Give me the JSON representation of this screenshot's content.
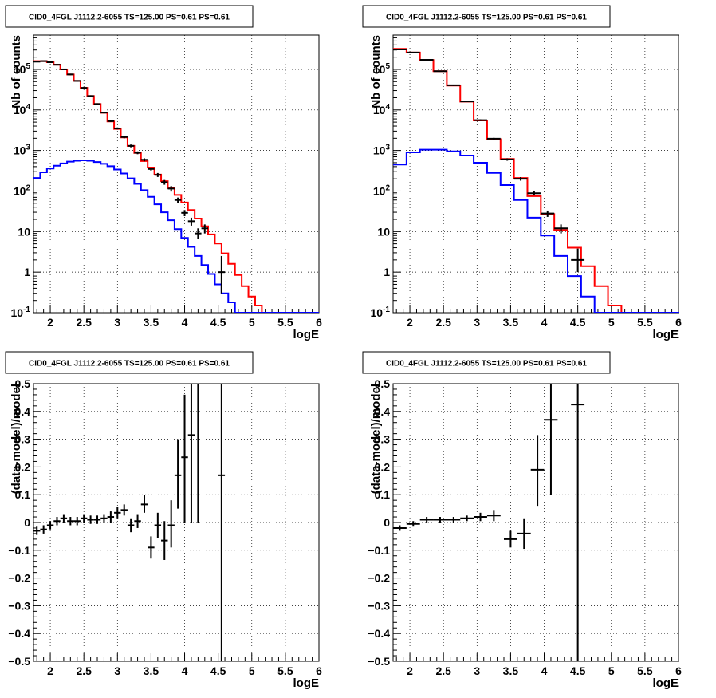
{
  "chart_data": [
    {
      "type": "line",
      "title": "CID0_4FGL J1112.2-6055 TS=125.00 PS=0.61 PS=0.61",
      "xlabel": "logE",
      "ylabel": "Nb of counts",
      "yscale": "log",
      "xlim": [
        1.75,
        6.0
      ],
      "ylim": [
        0.1,
        700000
      ],
      "grid": true,
      "xticks": [
        "2",
        "2.5",
        "3",
        "3.5",
        "4",
        "4.5",
        "5",
        "5.5",
        "6"
      ],
      "yticks": [
        "10^-1",
        "1",
        "10",
        "10^2",
        "10^3",
        "10^4",
        "10^5"
      ],
      "bin_edges": [
        1.75,
        1.85,
        1.95,
        2.05,
        2.15,
        2.25,
        2.35,
        2.45,
        2.55,
        2.65,
        2.75,
        2.85,
        2.95,
        3.05,
        3.15,
        3.25,
        3.35,
        3.45,
        3.55,
        3.65,
        3.75,
        3.85,
        3.95,
        4.05,
        4.15,
        4.25,
        4.35,
        4.45,
        4.55,
        4.65,
        4.75,
        4.85,
        4.95,
        5.05,
        5.15,
        5.25,
        5.35,
        5.45,
        5.55,
        5.65,
        5.75,
        5.85,
        5.95,
        6.0
      ],
      "series": [
        {
          "color": "#ff0000",
          "values": [
            160000,
            160000,
            150000,
            130000,
            100000,
            75000,
            52000,
            35000,
            22000,
            14000,
            8500,
            5200,
            3400,
            2100,
            1300,
            870,
            550,
            380,
            255,
            175,
            118,
            80,
            52,
            34,
            21,
            13.5,
            8.5,
            5.1,
            2.9,
            1.6,
            0.85,
            0.45,
            0.25,
            0.15,
            0.1,
            0.1,
            0.1,
            0.1,
            0.1,
            0.1,
            0.1,
            0.1,
            0.1
          ]
        },
        {
          "color": "#0000ff",
          "values": [
            210,
            290,
            360,
            420,
            480,
            530,
            560,
            570,
            560,
            520,
            470,
            410,
            340,
            270,
            205,
            150,
            105,
            72,
            47,
            30,
            19,
            11.5,
            7,
            4.2,
            2.5,
            1.5,
            0.9,
            0.5,
            0.3,
            0.18,
            0.1,
            0.1,
            0.1,
            0.1,
            0.1,
            0.1,
            0.1,
            0.1,
            0.1,
            0.1,
            0.1,
            0.1,
            0.1
          ]
        },
        {
          "color": "#000000",
          "style": "points",
          "points": [
            {
              "x": 1.8,
              "y": 155000,
              "lo": 150000,
              "hi": 160000,
              "xerr": 0.05
            },
            {
              "x": 1.9,
              "y": 160000,
              "lo": 155000,
              "hi": 165000,
              "xerr": 0.05
            },
            {
              "x": 2.0,
              "y": 150000,
              "lo": 145000,
              "hi": 155000,
              "xerr": 0.05
            },
            {
              "x": 2.1,
              "y": 130000,
              "lo": 125000,
              "hi": 135000,
              "xerr": 0.05
            },
            {
              "x": 2.2,
              "y": 100000,
              "lo": 96000,
              "hi": 104000,
              "xerr": 0.05
            },
            {
              "x": 2.3,
              "y": 75000,
              "lo": 72000,
              "hi": 78000,
              "xerr": 0.05
            },
            {
              "x": 2.4,
              "y": 52000,
              "lo": 50000,
              "hi": 54000,
              "xerr": 0.05
            },
            {
              "x": 2.5,
              "y": 35000,
              "lo": 33500,
              "hi": 36500,
              "xerr": 0.05
            },
            {
              "x": 2.6,
              "y": 22000,
              "lo": 21000,
              "hi": 23000,
              "xerr": 0.05
            },
            {
              "x": 2.7,
              "y": 14000,
              "lo": 13400,
              "hi": 14600,
              "xerr": 0.05
            },
            {
              "x": 2.8,
              "y": 8600,
              "lo": 8200,
              "hi": 9000,
              "xerr": 0.05
            },
            {
              "x": 2.9,
              "y": 5300,
              "lo": 5050,
              "hi": 5550,
              "xerr": 0.05
            },
            {
              "x": 3.0,
              "y": 3500,
              "lo": 3300,
              "hi": 3700,
              "xerr": 0.05
            },
            {
              "x": 3.1,
              "y": 2150,
              "lo": 2000,
              "hi": 2300,
              "xerr": 0.05
            },
            {
              "x": 3.2,
              "y": 1300,
              "lo": 1200,
              "hi": 1400,
              "xerr": 0.05
            },
            {
              "x": 3.3,
              "y": 880,
              "lo": 810,
              "hi": 950,
              "xerr": 0.05
            },
            {
              "x": 3.4,
              "y": 590,
              "lo": 540,
              "hi": 640,
              "xerr": 0.05
            },
            {
              "x": 3.5,
              "y": 350,
              "lo": 320,
              "hi": 380,
              "xerr": 0.05
            },
            {
              "x": 3.6,
              "y": 250,
              "lo": 222,
              "hi": 278,
              "xerr": 0.05
            },
            {
              "x": 3.7,
              "y": 165,
              "lo": 143,
              "hi": 187,
              "xerr": 0.05
            },
            {
              "x": 3.8,
              "y": 115,
              "lo": 97,
              "hi": 133,
              "xerr": 0.05
            },
            {
              "x": 3.9,
              "y": 60,
              "lo": 51,
              "hi": 69,
              "xerr": 0.05
            },
            {
              "x": 4.0,
              "y": 29,
              "lo": 24,
              "hi": 34,
              "xerr": 0.05
            },
            {
              "x": 4.1,
              "y": 18,
              "lo": 14,
              "hi": 22,
              "xerr": 0.05
            },
            {
              "x": 4.2,
              "y": 9,
              "lo": 6.5,
              "hi": 12,
              "xerr": 0.05
            },
            {
              "x": 4.3,
              "y": 12,
              "lo": 9,
              "hi": 15,
              "xerr": 0.05
            },
            {
              "x": 4.55,
              "y": 1,
              "lo": 0.3,
              "hi": 2.5,
              "xerr": 0.05
            }
          ]
        }
      ]
    },
    {
      "type": "line",
      "title": "CID0_4FGL J1112.2-6055 TS=125.00 PS=0.61 PS=0.61",
      "xlabel": "logE",
      "ylabel": "Nb of counts",
      "yscale": "log",
      "xlim": [
        1.75,
        6.0
      ],
      "ylim": [
        0.1,
        700000
      ],
      "grid": true,
      "xticks": [
        "2",
        "2.5",
        "3",
        "3.5",
        "4",
        "4.5",
        "5",
        "5.5",
        "6"
      ],
      "yticks": [
        "10^-1",
        "1",
        "10",
        "10^2",
        "10^3",
        "10^4",
        "10^5"
      ],
      "bin_edges": [
        1.75,
        1.95,
        2.15,
        2.35,
        2.55,
        2.75,
        2.95,
        3.15,
        3.35,
        3.55,
        3.75,
        3.95,
        4.15,
        4.35,
        4.55,
        4.75,
        4.95,
        5.15,
        5.35,
        5.55,
        5.75,
        5.95,
        6.0
      ],
      "series": [
        {
          "color": "#ff0000",
          "values": [
            320000,
            260000,
            170000,
            90000,
            40000,
            16000,
            5500,
            1900,
            620,
            210,
            75,
            27,
            11,
            4,
            1.4,
            0.45,
            0.15,
            0.1,
            0.1,
            0.1,
            0.1,
            0.1
          ]
        },
        {
          "color": "#0000ff",
          "values": [
            450,
            900,
            1050,
            1050,
            950,
            750,
            500,
            280,
            140,
            60,
            22,
            8,
            2.5,
            0.8,
            0.25,
            0.1,
            0.1,
            0.1,
            0.1,
            0.1,
            0.1,
            0.1
          ]
        },
        {
          "color": "#000000",
          "style": "points",
          "points": [
            {
              "x": 1.85,
              "y": 310000,
              "lo": 305000,
              "hi": 315000,
              "xerr": 0.1
            },
            {
              "x": 2.05,
              "y": 260000,
              "lo": 255000,
              "hi": 265000,
              "xerr": 0.1
            },
            {
              "x": 2.25,
              "y": 172000,
              "lo": 168000,
              "hi": 176000,
              "xerr": 0.1
            },
            {
              "x": 2.45,
              "y": 90000,
              "lo": 87000,
              "hi": 93000,
              "xerr": 0.1
            },
            {
              "x": 2.65,
              "y": 40500,
              "lo": 39000,
              "hi": 42000,
              "xerr": 0.1
            },
            {
              "x": 2.85,
              "y": 16200,
              "lo": 15600,
              "hi": 16800,
              "xerr": 0.1
            },
            {
              "x": 3.05,
              "y": 5600,
              "lo": 5350,
              "hi": 5850,
              "xerr": 0.1
            },
            {
              "x": 3.25,
              "y": 1950,
              "lo": 1850,
              "hi": 2050,
              "xerr": 0.1
            },
            {
              "x": 3.45,
              "y": 600,
              "lo": 560,
              "hi": 640,
              "xerr": 0.1
            },
            {
              "x": 3.65,
              "y": 200,
              "lo": 180,
              "hi": 220,
              "xerr": 0.1
            },
            {
              "x": 3.85,
              "y": 88,
              "lo": 78,
              "hi": 98,
              "xerr": 0.1
            },
            {
              "x": 4.05,
              "y": 28,
              "lo": 23,
              "hi": 33,
              "xerr": 0.1
            },
            {
              "x": 4.25,
              "y": 12,
              "lo": 9,
              "hi": 15,
              "xerr": 0.1
            },
            {
              "x": 4.5,
              "y": 2,
              "lo": 1,
              "hi": 3.8,
              "xerr": 0.1
            }
          ]
        }
      ]
    },
    {
      "type": "scatter",
      "title": "CID0_4FGL J1112.2-6055 TS=125.00 PS=0.61 PS=0.61",
      "xlabel": "logE",
      "ylabel": "(data-model)/model",
      "xlim": [
        1.75,
        6.0
      ],
      "ylim": [
        -0.5,
        0.5
      ],
      "grid": true,
      "xticks": [
        "2",
        "2.5",
        "3",
        "3.5",
        "4",
        "4.5",
        "5",
        "5.5",
        "6"
      ],
      "yticks": [
        "−0.5",
        "−0.4",
        "−0.3",
        "−0.2",
        "−0.1",
        "0",
        "0.1",
        "0.2",
        "0.3",
        "0.4",
        "0.5"
      ],
      "series": [
        {
          "color": "#000000",
          "style": "points",
          "points": [
            {
              "x": 1.8,
              "y": -0.03,
              "lo": -0.045,
              "hi": -0.015,
              "xerr": 0.05
            },
            {
              "x": 1.9,
              "y": -0.025,
              "lo": -0.04,
              "hi": -0.01,
              "xerr": 0.05
            },
            {
              "x": 2.0,
              "y": -0.01,
              "lo": -0.025,
              "hi": 0.005,
              "xerr": 0.05
            },
            {
              "x": 2.1,
              "y": 0.005,
              "lo": -0.01,
              "hi": 0.02,
              "xerr": 0.05
            },
            {
              "x": 2.2,
              "y": 0.015,
              "lo": 0.0,
              "hi": 0.03,
              "xerr": 0.05
            },
            {
              "x": 2.3,
              "y": 0.005,
              "lo": -0.01,
              "hi": 0.02,
              "xerr": 0.05
            },
            {
              "x": 2.4,
              "y": 0.005,
              "lo": -0.01,
              "hi": 0.02,
              "xerr": 0.05
            },
            {
              "x": 2.5,
              "y": 0.015,
              "lo": 0.0,
              "hi": 0.03,
              "xerr": 0.05
            },
            {
              "x": 2.6,
              "y": 0.01,
              "lo": -0.005,
              "hi": 0.025,
              "xerr": 0.05
            },
            {
              "x": 2.7,
              "y": 0.01,
              "lo": -0.005,
              "hi": 0.025,
              "xerr": 0.05
            },
            {
              "x": 2.8,
              "y": 0.015,
              "lo": 0.0,
              "hi": 0.03,
              "xerr": 0.05
            },
            {
              "x": 2.9,
              "y": 0.02,
              "lo": 0.0,
              "hi": 0.04,
              "xerr": 0.05
            },
            {
              "x": 3.0,
              "y": 0.035,
              "lo": 0.015,
              "hi": 0.055,
              "xerr": 0.05
            },
            {
              "x": 3.1,
              "y": 0.045,
              "lo": 0.025,
              "hi": 0.065,
              "xerr": 0.05
            },
            {
              "x": 3.2,
              "y": -0.01,
              "lo": -0.035,
              "hi": 0.015,
              "xerr": 0.05
            },
            {
              "x": 3.3,
              "y": 0.005,
              "lo": -0.02,
              "hi": 0.03,
              "xerr": 0.05
            },
            {
              "x": 3.4,
              "y": 0.065,
              "lo": 0.035,
              "hi": 0.1,
              "xerr": 0.05
            },
            {
              "x": 3.5,
              "y": -0.09,
              "lo": -0.13,
              "hi": -0.05,
              "xerr": 0.05
            },
            {
              "x": 3.6,
              "y": -0.01,
              "lo": -0.055,
              "hi": 0.035,
              "xerr": 0.05
            },
            {
              "x": 3.7,
              "y": -0.065,
              "lo": -0.135,
              "hi": 0.005,
              "xerr": 0.05
            },
            {
              "x": 3.8,
              "y": -0.01,
              "lo": -0.09,
              "hi": 0.08,
              "xerr": 0.05
            },
            {
              "x": 3.9,
              "y": 0.17,
              "lo": 0.05,
              "hi": 0.3,
              "xerr": 0.05
            },
            {
              "x": 4.0,
              "y": 0.235,
              "lo": 0.0,
              "hi": 0.46,
              "xerr": 0.05
            },
            {
              "x": 4.1,
              "y": 0.315,
              "lo": -0.0,
              "hi": 0.5,
              "xerr": 0.05
            },
            {
              "x": 4.2,
              "y": 0.5,
              "lo": -0.0,
              "hi": 0.5,
              "xerr": 0.05
            },
            {
              "x": 4.55,
              "y": 0.17,
              "lo": -0.5,
              "hi": 0.5,
              "xerr": 0.05
            }
          ]
        }
      ]
    },
    {
      "type": "scatter",
      "title": "CID0_4FGL J1112.2-6055 TS=125.00 PS=0.61 PS=0.61",
      "xlabel": "logE",
      "ylabel": "(data-model)/model",
      "xlim": [
        1.75,
        6.0
      ],
      "ylim": [
        -0.5,
        0.5
      ],
      "grid": true,
      "xticks": [
        "2",
        "2.5",
        "3",
        "3.5",
        "4",
        "4.5",
        "5",
        "5.5",
        "6"
      ],
      "yticks": [
        "−0.5",
        "−0.4",
        "−0.3",
        "−0.2",
        "−0.1",
        "0",
        "0.1",
        "0.2",
        "0.3",
        "0.4",
        "0.5"
      ],
      "series": [
        {
          "color": "#000000",
          "style": "points",
          "points": [
            {
              "x": 1.85,
              "y": -0.02,
              "lo": -0.03,
              "hi": -0.01,
              "xerr": 0.1
            },
            {
              "x": 2.05,
              "y": -0.005,
              "lo": -0.015,
              "hi": 0.005,
              "xerr": 0.1
            },
            {
              "x": 2.25,
              "y": 0.01,
              "lo": 0.0,
              "hi": 0.02,
              "xerr": 0.1
            },
            {
              "x": 2.45,
              "y": 0.01,
              "lo": 0.0,
              "hi": 0.02,
              "xerr": 0.1
            },
            {
              "x": 2.65,
              "y": 0.01,
              "lo": 0.0,
              "hi": 0.02,
              "xerr": 0.1
            },
            {
              "x": 2.85,
              "y": 0.015,
              "lo": 0.005,
              "hi": 0.025,
              "xerr": 0.1
            },
            {
              "x": 3.05,
              "y": 0.02,
              "lo": 0.005,
              "hi": 0.035,
              "xerr": 0.1
            },
            {
              "x": 3.25,
              "y": 0.025,
              "lo": 0.005,
              "hi": 0.045,
              "xerr": 0.1
            },
            {
              "x": 3.5,
              "y": -0.06,
              "lo": -0.09,
              "hi": -0.03,
              "xerr": 0.1
            },
            {
              "x": 3.7,
              "y": -0.04,
              "lo": -0.095,
              "hi": 0.015,
              "xerr": 0.1
            },
            {
              "x": 3.9,
              "y": 0.19,
              "lo": 0.06,
              "hi": 0.315,
              "xerr": 0.1
            },
            {
              "x": 4.1,
              "y": 0.37,
              "lo": 0.1,
              "hi": 0.5,
              "xerr": 0.1
            },
            {
              "x": 4.5,
              "y": 0.425,
              "lo": -0.5,
              "hi": 0.5,
              "xerr": 0.1
            }
          ]
        }
      ]
    }
  ]
}
